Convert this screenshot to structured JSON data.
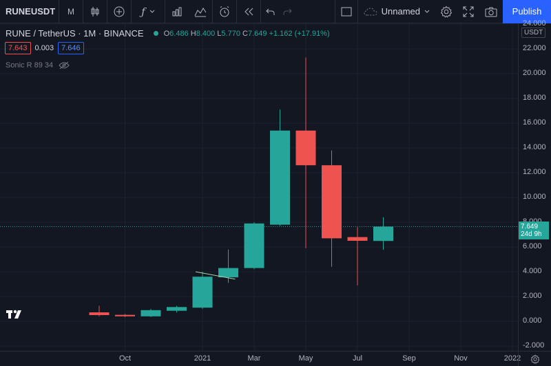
{
  "toolbar": {
    "symbol": "RUNEUSDT",
    "interval": "M",
    "layout_name": "Unnamed",
    "publish_label": "Publish"
  },
  "legend": {
    "title": "RUNE / TetherUS · 1M · BINANCE",
    "o_key": "O",
    "o_val": "6.486",
    "h_key": "H",
    "h_val": "8.400",
    "l_key": "L",
    "l_val": "5.770",
    "c_key": "C",
    "c_val": "7.649",
    "change": "+1.162 (+17.91%)",
    "bid": "7.643",
    "spread": "0.003",
    "ask": "7.646",
    "indicator": "Sonic R 89 34"
  },
  "price_axis": {
    "currency": "USDT",
    "current_price": "7.649",
    "countdown": "24d 9h"
  },
  "colors": {
    "up": "#26a69a",
    "down": "#ef5350",
    "background": "#131722",
    "accent": "#2962ff"
  },
  "chart_data": {
    "type": "candlestick",
    "y_ticks": [
      "24.000",
      "22.000",
      "20.000",
      "18.000",
      "16.000",
      "14.000",
      "12.000",
      "10.000",
      "8.000",
      "6.000",
      "4.000",
      "2.000",
      "0.000",
      "-2.000"
    ],
    "x_ticks": [
      "Oct",
      "2021",
      "Mar",
      "May",
      "Jul",
      "Sep",
      "Nov",
      "2022"
    ],
    "ylim": [
      -2,
      24
    ],
    "candles": [
      {
        "date": "2020-09",
        "o": 0.72,
        "h": 1.25,
        "l": 0.4,
        "c": 0.5
      },
      {
        "date": "2020-10",
        "o": 0.52,
        "h": 0.6,
        "l": 0.35,
        "c": 0.4
      },
      {
        "date": "2020-11",
        "o": 0.4,
        "h": 1.0,
        "l": 0.35,
        "c": 0.9
      },
      {
        "date": "2020-12",
        "o": 0.85,
        "h": 1.25,
        "l": 0.7,
        "c": 1.15
      },
      {
        "date": "2021-01",
        "o": 1.1,
        "h": 4.0,
        "l": 1.0,
        "c": 3.6
      },
      {
        "date": "2021-02",
        "o": 3.55,
        "h": 5.8,
        "l": 3.1,
        "c": 4.3
      },
      {
        "date": "2021-03",
        "o": 4.3,
        "h": 8.0,
        "l": 4.2,
        "c": 7.9
      },
      {
        "date": "2021-04",
        "o": 7.8,
        "h": 17.1,
        "l": 7.7,
        "c": 15.4
      },
      {
        "date": "2021-05",
        "o": 15.4,
        "h": 21.3,
        "l": 5.9,
        "c": 12.6
      },
      {
        "date": "2021-06",
        "o": 12.6,
        "h": 13.8,
        "l": 4.4,
        "c": 6.7
      },
      {
        "date": "2021-07",
        "o": 6.8,
        "h": 7.6,
        "l": 2.9,
        "c": 6.5
      },
      {
        "date": "2021-08",
        "o": 6.486,
        "h": 8.4,
        "l": 5.77,
        "c": 7.649
      }
    ],
    "indicator_series": [
      {
        "date": "2021-01",
        "value": 4.0
      },
      {
        "date": "2021-02",
        "value": 3.4
      }
    ]
  }
}
